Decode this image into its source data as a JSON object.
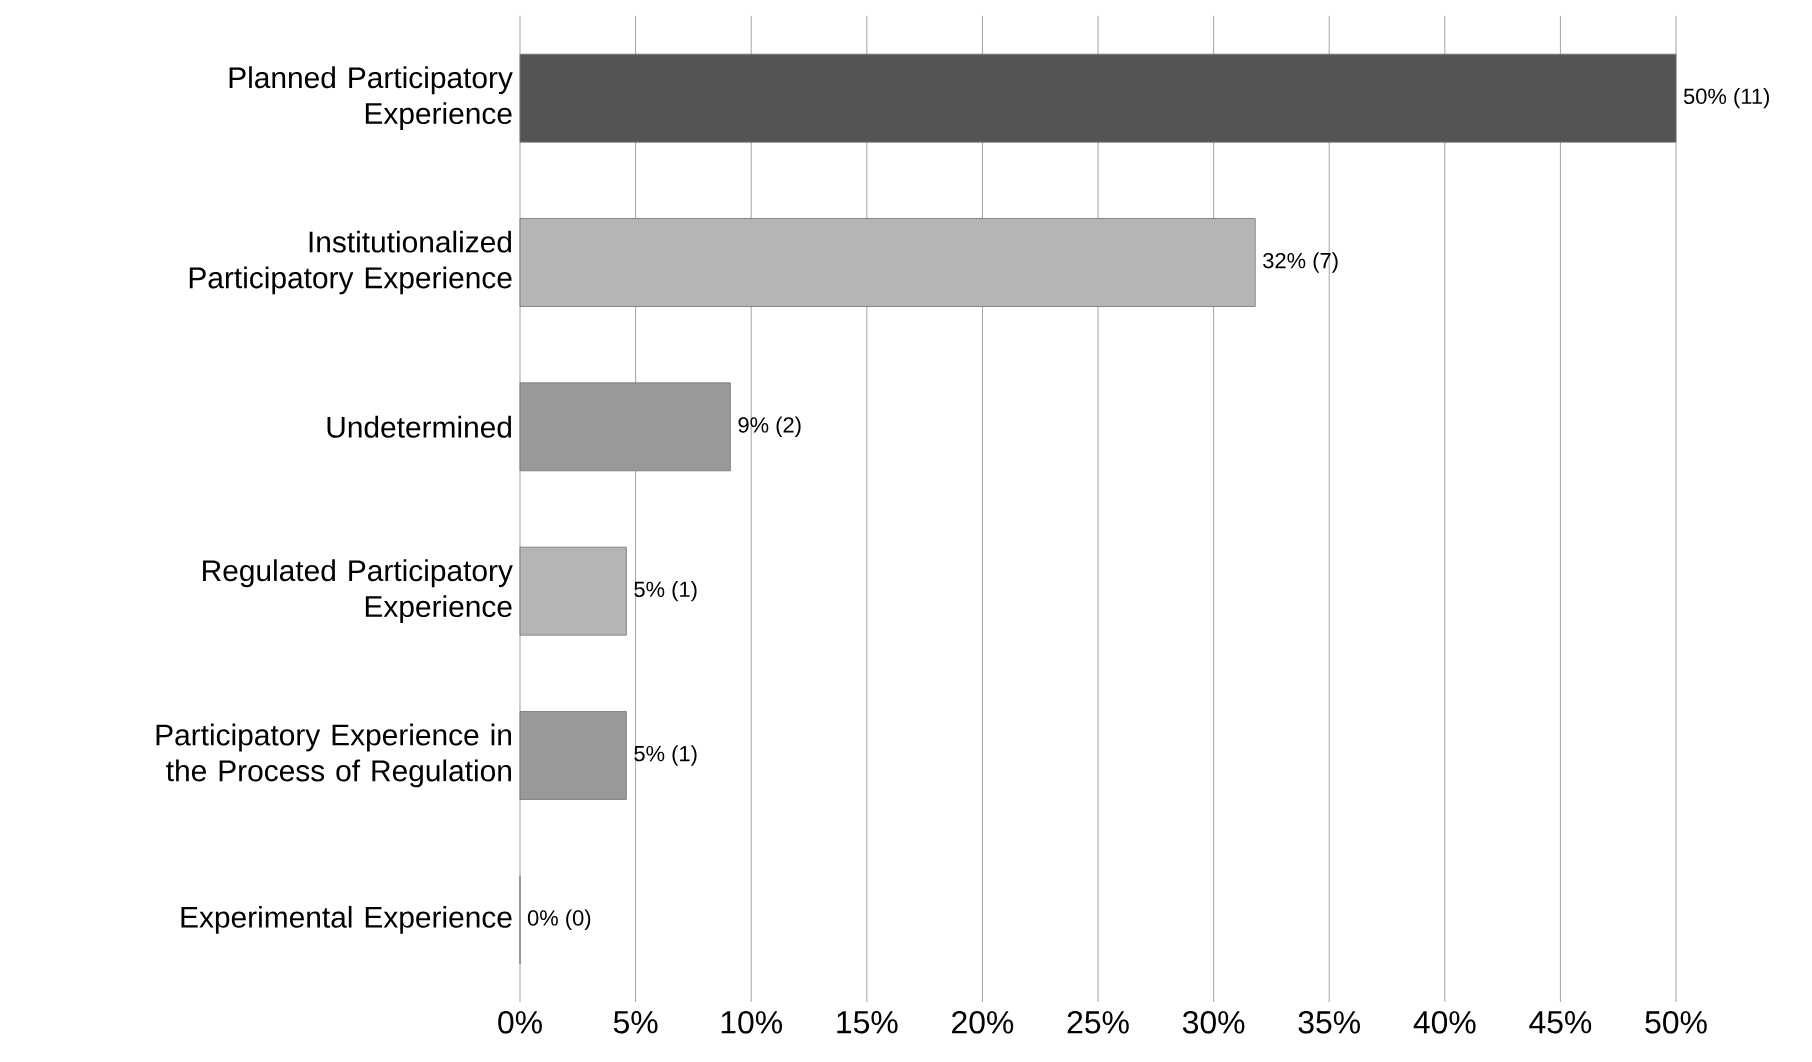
{
  "chart_data": {
    "type": "bar",
    "orientation": "horizontal",
    "categories": [
      "Planned Participatory Experience",
      "Institutionalized Participatory Experience",
      "Undetermined",
      "Regulated Participatory Experience",
      "Participatory Experience in the Process of Regulation",
      "Experimental  Experience"
    ],
    "values": [
      50,
      31.8,
      9.1,
      4.6,
      4.6,
      0
    ],
    "colors": [
      "#545454",
      "#b5b5b5",
      "#999999",
      "#b5b5b5",
      "#999999",
      "#999999"
    ],
    "value_labels": [
      "50% (11)",
      "32% (7)",
      "9% (2)",
      "5% (1)",
      "5% (1)",
      "0% (0)"
    ],
    "xlim": [
      0,
      50
    ],
    "xticks": [
      {
        "value": 0,
        "label": "0%"
      },
      {
        "value": 5,
        "label": "5%"
      },
      {
        "value": 10,
        "label": "10%"
      },
      {
        "value": 15,
        "label": "15%"
      },
      {
        "value": 20,
        "label": "20%"
      },
      {
        "value": 25,
        "label": "25%"
      },
      {
        "value": 30,
        "label": "30%"
      },
      {
        "value": 35,
        "label": "35%"
      },
      {
        "value": 40,
        "label": "40%"
      },
      {
        "value": 45,
        "label": "45%"
      },
      {
        "value": 50,
        "label": "50%"
      }
    ],
    "grid": "x"
  }
}
